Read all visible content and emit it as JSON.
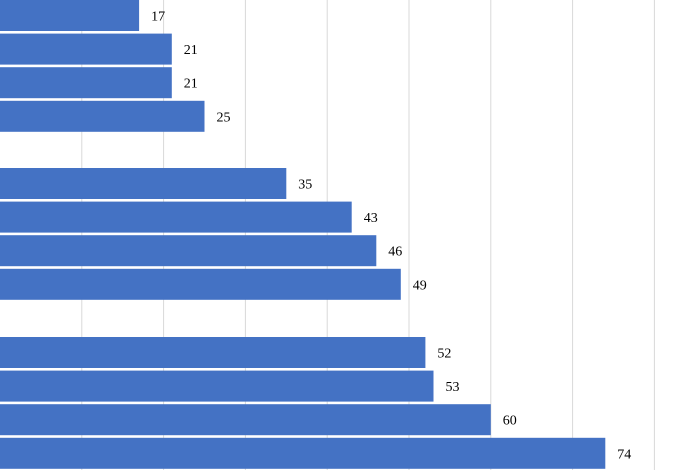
{
  "chart_data": {
    "type": "bar",
    "orientation": "horizontal",
    "xlim": [
      0,
      80
    ],
    "grid": true,
    "groups": [
      {
        "values": [
          17,
          21,
          21,
          25
        ]
      },
      {
        "values": [
          35,
          43,
          46,
          49
        ]
      },
      {
        "values": [
          52,
          53,
          60,
          74
        ]
      }
    ],
    "data_labels": true,
    "colors": {
      "bar": "#4472c4",
      "grid": "#d9d9d9"
    }
  }
}
